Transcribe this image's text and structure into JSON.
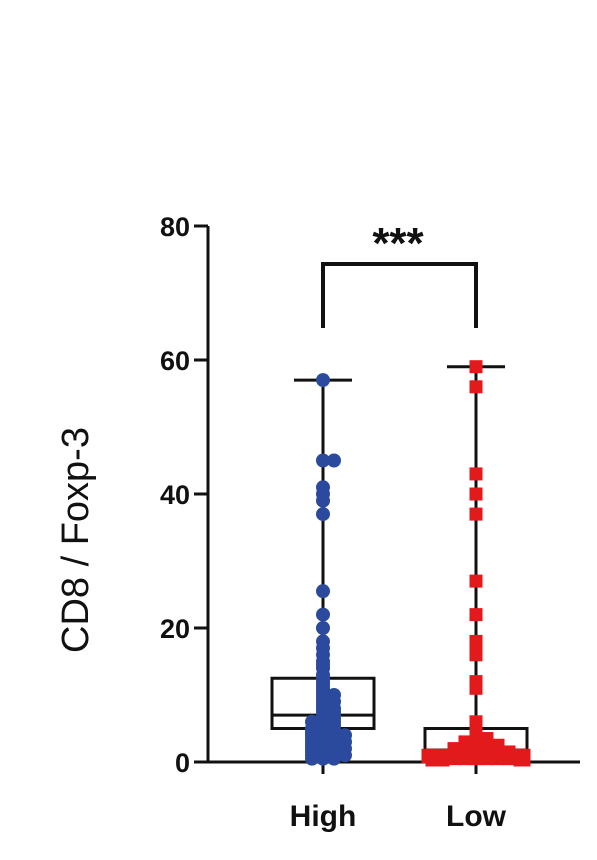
{
  "chart_data": {
    "type": "box-scatter",
    "ylabel": "CD8 / Foxp-3",
    "ylim": [
      0,
      80
    ],
    "yticks": [
      "0",
      "20",
      "40",
      "60",
      "80"
    ],
    "categories": [
      "High",
      "Low"
    ],
    "significance": "***",
    "colors": {
      "High": "#2b4a9e",
      "Low": "#e31a1c",
      "axis": "#111111"
    },
    "series": [
      {
        "name": "High",
        "marker": "circle",
        "box": {
          "min": 0.5,
          "q1": 5,
          "median": 7,
          "q3": 12.5,
          "max": 57
        },
        "values": [
          57,
          45,
          45,
          41,
          40,
          39,
          37,
          25.5,
          22,
          20,
          18,
          17,
          16,
          15,
          14.5,
          14,
          13,
          12.5,
          12,
          11.5,
          11,
          10.5,
          10,
          10,
          9.5,
          9,
          9,
          8.5,
          8,
          8,
          7.5,
          7.5,
          7,
          7,
          6.5,
          6.5,
          6,
          6,
          6,
          5.5,
          5.5,
          5,
          5,
          5,
          4.5,
          4.5,
          4.5,
          4,
          4,
          4,
          4,
          3.5,
          3.5,
          3.5,
          3,
          3,
          3,
          3,
          2.5,
          2.5,
          2.5,
          2,
          2,
          2,
          2,
          1.5,
          1.5,
          1.5,
          1,
          1,
          1,
          1,
          0.5,
          0.5,
          0.5
        ]
      },
      {
        "name": "Low",
        "marker": "square",
        "box": {
          "min": 0.2,
          "q1": 0.8,
          "median": 1.8,
          "q3": 5,
          "max": 59
        },
        "values": [
          59,
          56,
          43,
          40,
          37,
          27,
          22,
          18,
          17.5,
          17,
          16,
          12,
          11.5,
          11,
          6,
          5.5,
          5,
          4.5,
          4,
          3.5,
          3.5,
          3,
          3,
          3,
          2.5,
          2.5,
          2.5,
          2.5,
          2,
          2,
          2,
          2,
          2,
          1.5,
          1.5,
          1.5,
          1.5,
          1.5,
          1.5,
          1.2,
          1.2,
          1.2,
          1.2,
          1.2,
          1,
          1,
          1,
          1,
          1,
          1,
          0.8,
          0.8,
          0.8,
          0.8,
          0.8,
          0.5,
          0.5,
          0.5,
          0.5,
          0.5,
          0.5,
          0.3,
          0.3,
          0.3,
          0.3
        ]
      }
    ]
  }
}
